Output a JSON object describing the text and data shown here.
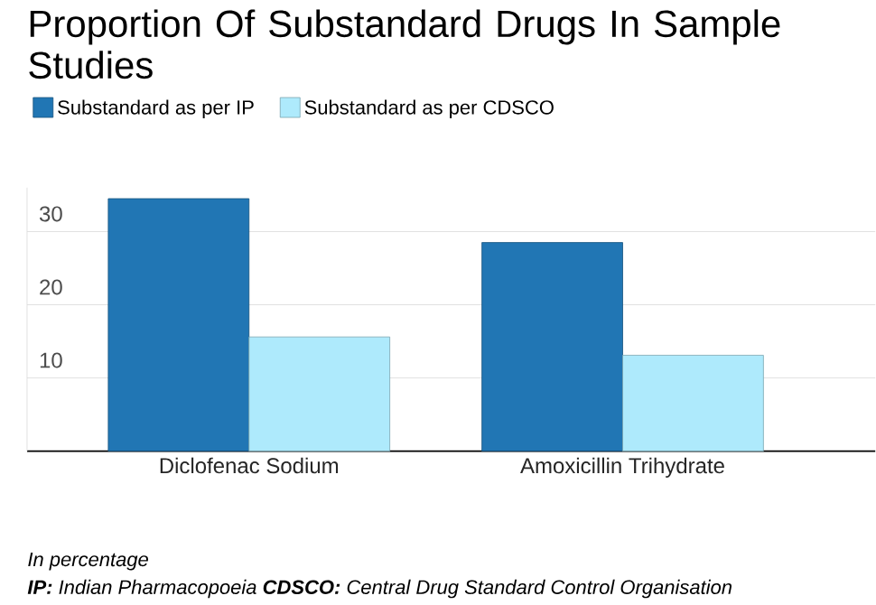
{
  "chart_data": {
    "type": "bar",
    "title": "Proportion Of Substandard Drugs In Sample Studies",
    "categories": [
      "Diclofenac Sodium",
      "Amoxicillin Trihydrate"
    ],
    "series": [
      {
        "name": "Substandard as per IP",
        "color": "#2176b4",
        "values": [
          34.5,
          28.5
        ]
      },
      {
        "name": "Substandard as per CDSCO",
        "color": "#aeeafc",
        "values": [
          15.6,
          13.1
        ]
      }
    ],
    "ylim": [
      0,
      36
    ],
    "yticks": [
      10,
      20,
      30
    ],
    "grid": "y",
    "legend": "top left",
    "annotations": [
      "In percentage",
      "**IP:** Indian Pharmacopoeia **CDSCO:** Central Drug Standard Control Organisation"
    ]
  }
}
